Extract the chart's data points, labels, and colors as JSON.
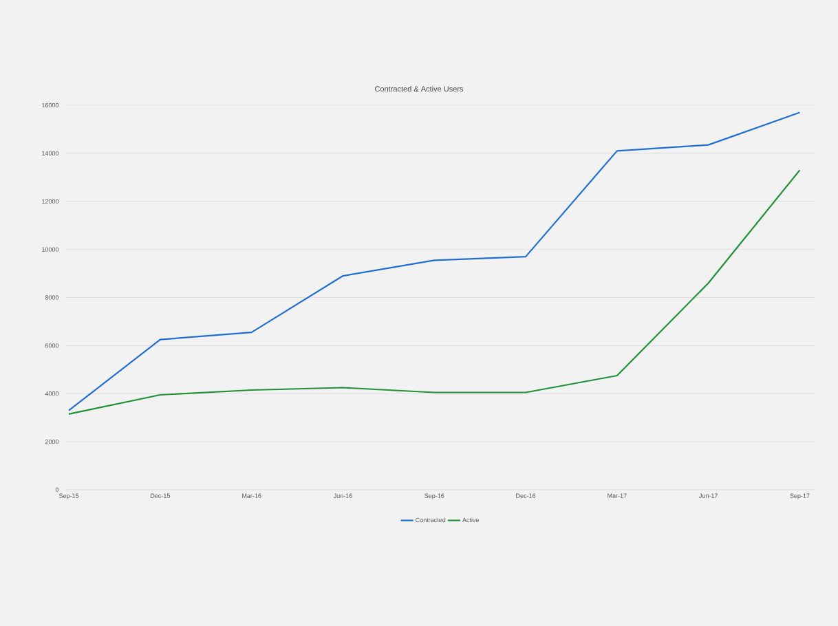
{
  "chart_data": {
    "type": "line",
    "title": "Contracted & Active Users",
    "categories": [
      "Sep-15",
      "Dec-15",
      "Mar-16",
      "Jun-16",
      "Sep-16",
      "Dec-16",
      "Mar-17",
      "Jun-17",
      "Sep-17"
    ],
    "series": [
      {
        "name": "Contracted",
        "color": "#1f6fd0",
        "values": [
          3300,
          6250,
          6550,
          8900,
          9550,
          9700,
          14100,
          14350,
          15700
        ]
      },
      {
        "name": "Active",
        "color": "#1e9139",
        "values": [
          3150,
          3950,
          4150,
          4250,
          4050,
          4050,
          4750,
          8600,
          13300
        ]
      }
    ],
    "ylim": [
      0,
      16000
    ],
    "yticks": [
      0,
      2000,
      4000,
      6000,
      8000,
      10000,
      12000,
      14000,
      16000
    ],
    "grid": "y",
    "legend": "bottom",
    "marker": "none",
    "line_style": "solid"
  }
}
